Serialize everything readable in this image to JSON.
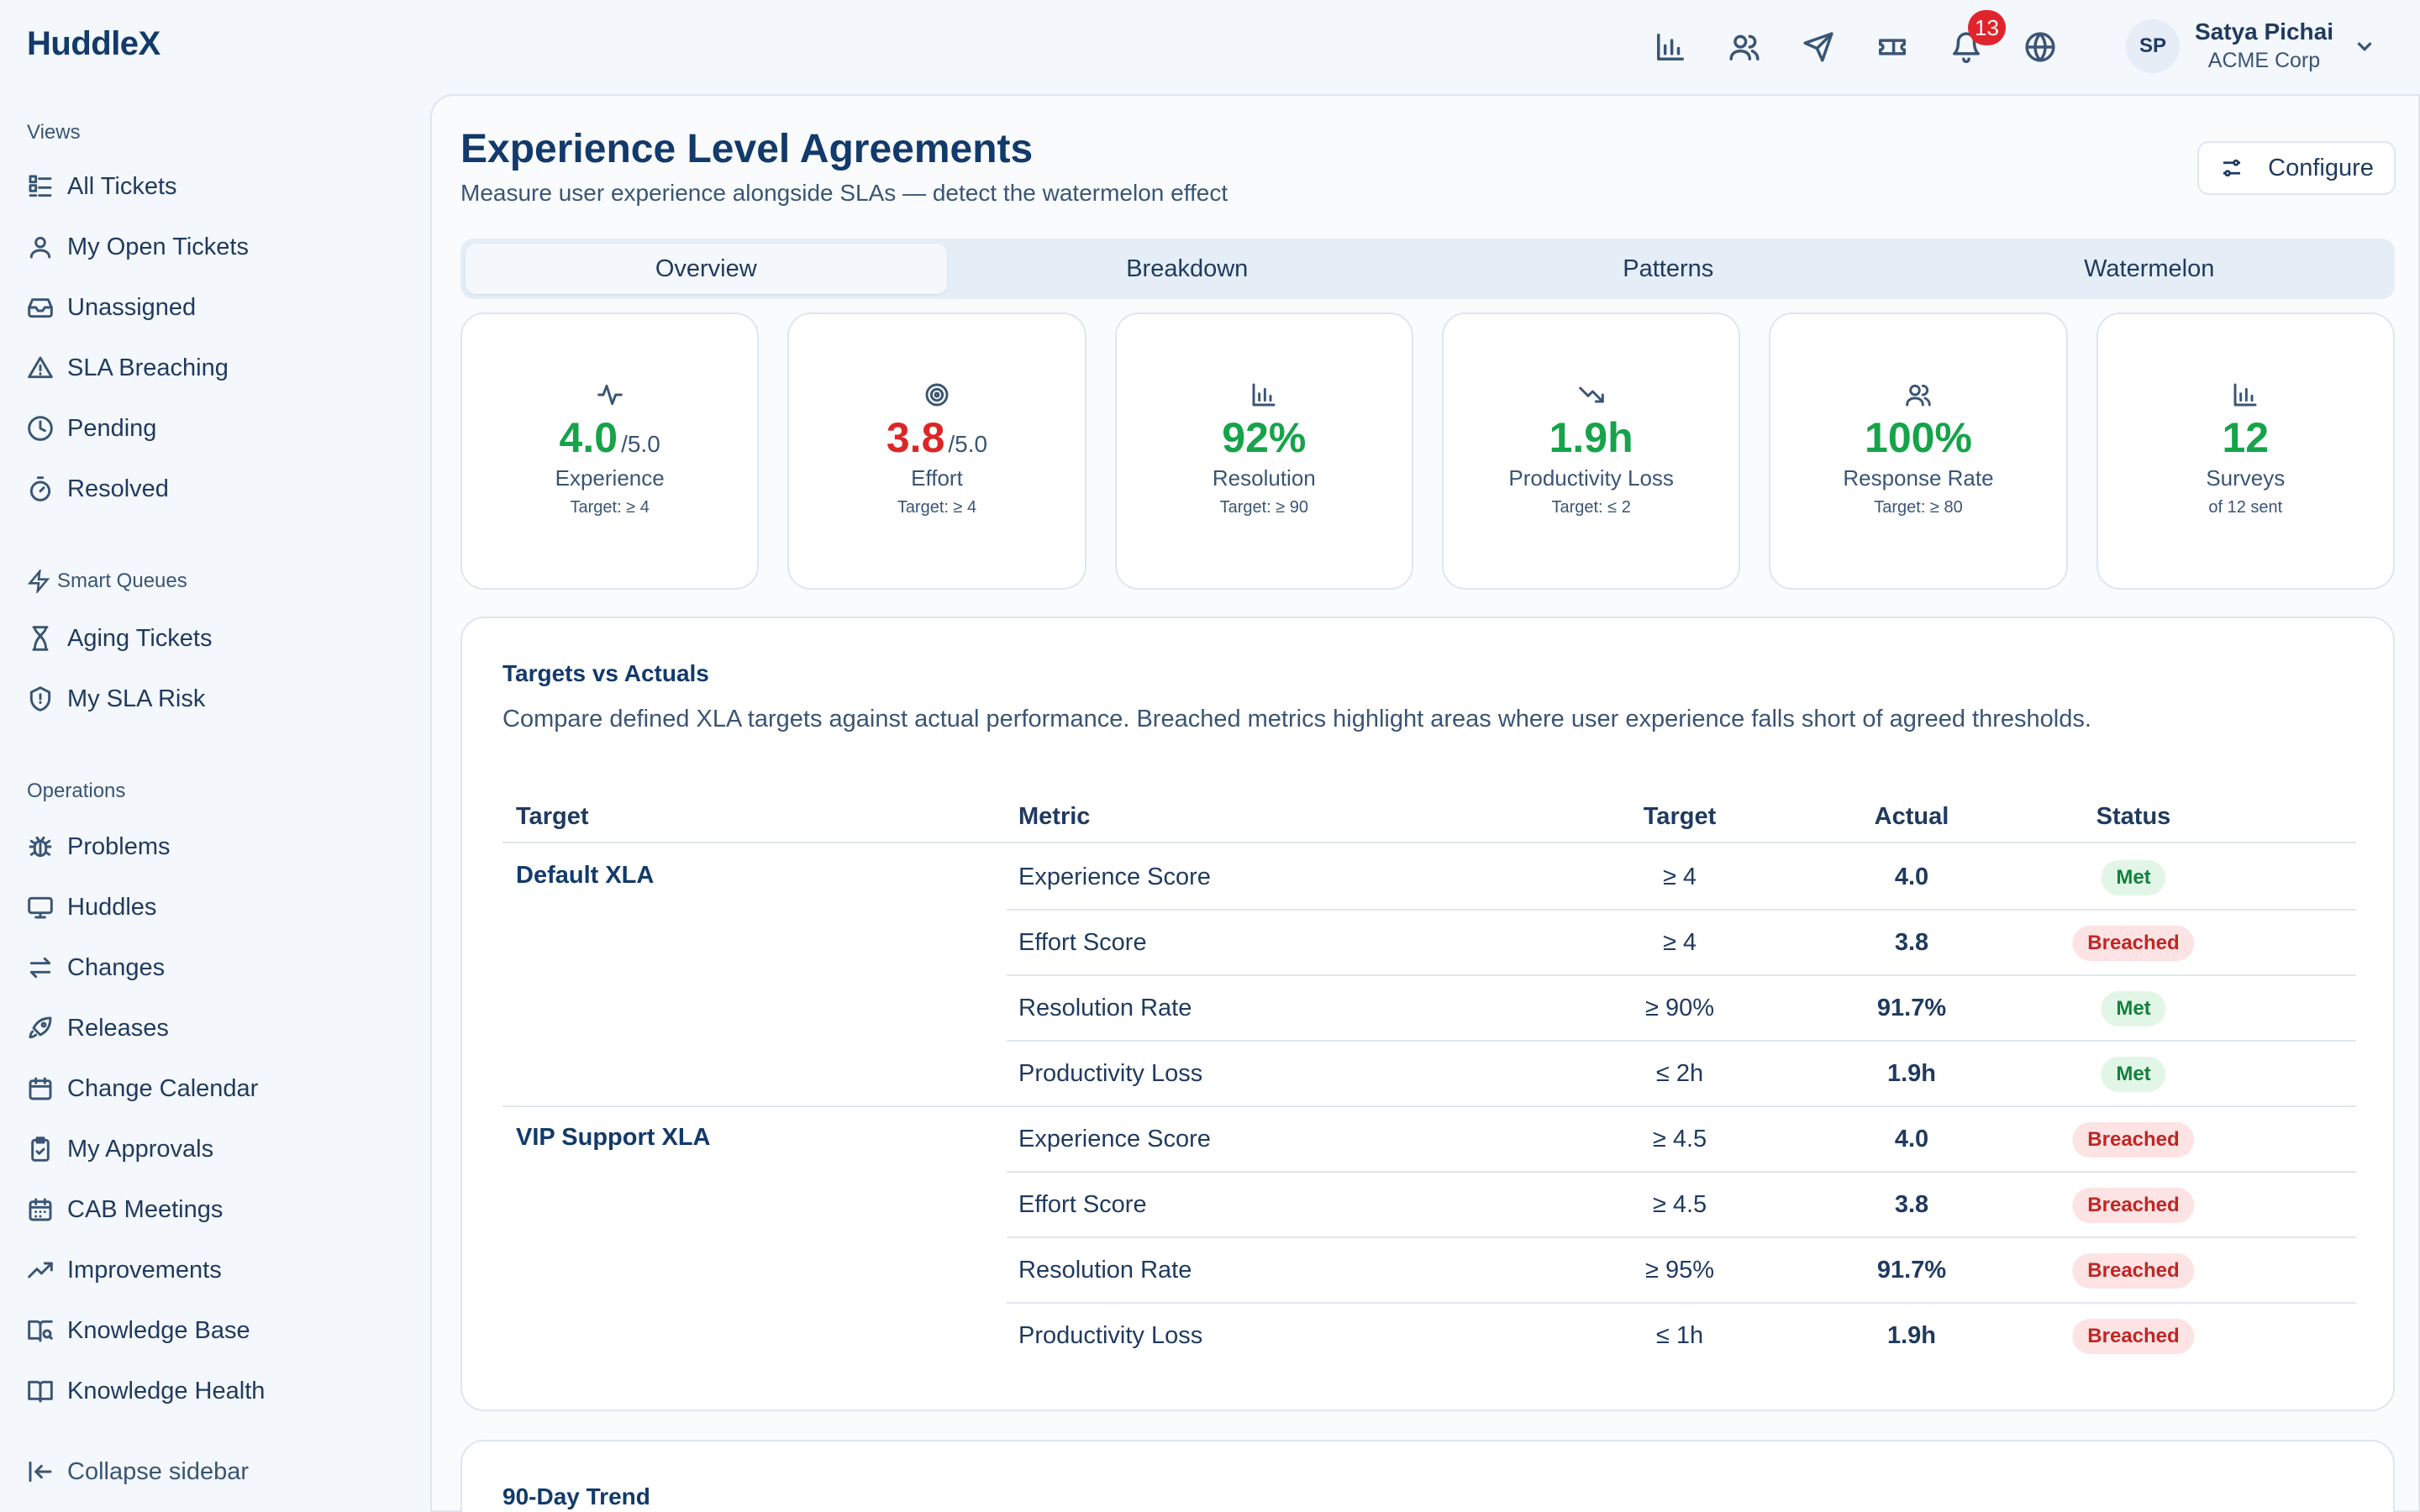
{
  "app": {
    "logo": "HuddleX"
  },
  "topbar": {
    "icons": [
      "bar-chart-icon",
      "users-icon",
      "send-icon",
      "ticket-icon",
      "bell-icon",
      "globe-icon"
    ],
    "notifications_count": "13",
    "user": {
      "initials": "SP",
      "name": "Satya Pichai",
      "org": "ACME Corp"
    }
  },
  "sidebar": {
    "views_title": "Views",
    "views": [
      {
        "label": "All Tickets",
        "icon": "list-icon"
      },
      {
        "label": "My Open Tickets",
        "icon": "user-icon"
      },
      {
        "label": "Unassigned",
        "icon": "inbox-icon"
      },
      {
        "label": "SLA Breaching",
        "icon": "alert-triangle-icon"
      },
      {
        "label": "Pending",
        "icon": "clock-icon"
      },
      {
        "label": "Resolved",
        "icon": "timer-icon"
      }
    ],
    "smart_title": "Smart Queues",
    "smart": [
      {
        "label": "Aging Tickets",
        "icon": "hourglass-icon"
      },
      {
        "label": "My SLA Risk",
        "icon": "shield-icon"
      }
    ],
    "ops_title": "Operations",
    "ops": [
      {
        "label": "Problems",
        "icon": "bug-icon"
      },
      {
        "label": "Huddles",
        "icon": "monitor-icon"
      },
      {
        "label": "Changes",
        "icon": "arrows-icon"
      },
      {
        "label": "Releases",
        "icon": "rocket-icon"
      },
      {
        "label": "Change Calendar",
        "icon": "calendar-icon"
      },
      {
        "label": "My Approvals",
        "icon": "clipboard-check-icon"
      },
      {
        "label": "CAB Meetings",
        "icon": "calendar-grid-icon"
      },
      {
        "label": "Improvements",
        "icon": "trending-up-icon"
      },
      {
        "label": "Knowledge Base",
        "icon": "book-search-icon"
      },
      {
        "label": "Knowledge Health",
        "icon": "book-open-icon"
      }
    ],
    "collapse_label": "Collapse sidebar"
  },
  "page": {
    "title": "Experience Level Agreements",
    "subtitle": "Measure user experience alongside SLAs — detect the watermelon effect",
    "configure_label": "Configure"
  },
  "tabs": [
    {
      "label": "Overview",
      "active": true
    },
    {
      "label": "Breakdown",
      "active": false
    },
    {
      "label": "Patterns",
      "active": false
    },
    {
      "label": "Watermelon",
      "active": false
    }
  ],
  "cards": [
    {
      "icon": "activity-icon",
      "value": "4.0",
      "unit": "/5.0",
      "label": "Experience",
      "target": "Target: ≥ 4",
      "color": "#16a34a"
    },
    {
      "icon": "target-icon",
      "value": "3.8",
      "unit": "/5.0",
      "label": "Effort",
      "target": "Target: ≥ 4",
      "color": "#dc2626"
    },
    {
      "icon": "bar-chart-icon",
      "value": "92%",
      "unit": "",
      "label": "Resolution",
      "target": "Target: ≥ 90",
      "color": "#16a34a"
    },
    {
      "icon": "trending-down-icon",
      "value": "1.9h",
      "unit": "",
      "label": "Productivity Loss",
      "target": "Target: ≤ 2",
      "color": "#16a34a"
    },
    {
      "icon": "users-icon",
      "value": "100%",
      "unit": "",
      "label": "Response Rate",
      "target": "Target: ≥ 80",
      "color": "#16a34a"
    },
    {
      "icon": "bar-chart-icon",
      "value": "12",
      "unit": "",
      "label": "Surveys",
      "target": "of 12 sent",
      "color": "#16a34a"
    }
  ],
  "targets_panel": {
    "title": "Targets vs Actuals",
    "description": "Compare defined XLA targets against actual performance. Breached metrics highlight areas where user experience falls short of agreed thresholds.",
    "headers": {
      "target": "Target",
      "metric": "Metric",
      "target_value": "Target",
      "actual": "Actual",
      "status": "Status"
    },
    "groups": [
      {
        "name": "Default XLA",
        "rows": [
          {
            "metric": "Experience Score",
            "target": "≥ 4",
            "actual": "4.0",
            "status": "Met"
          },
          {
            "metric": "Effort Score",
            "target": "≥ 4",
            "actual": "3.8",
            "status": "Breached"
          },
          {
            "metric": "Resolution Rate",
            "target": "≥ 90%",
            "actual": "91.7%",
            "status": "Met"
          },
          {
            "metric": "Productivity Loss",
            "target": "≤ 2h",
            "actual": "1.9h",
            "status": "Met"
          }
        ]
      },
      {
        "name": "VIP Support XLA",
        "rows": [
          {
            "metric": "Experience Score",
            "target": "≥ 4.5",
            "actual": "4.0",
            "status": "Breached"
          },
          {
            "metric": "Effort Score",
            "target": "≥ 4.5",
            "actual": "3.8",
            "status": "Breached"
          },
          {
            "metric": "Resolution Rate",
            "target": "≥ 95%",
            "actual": "91.7%",
            "status": "Breached"
          },
          {
            "metric": "Productivity Loss",
            "target": "≤ 1h",
            "actual": "1.9h",
            "status": "Breached"
          }
        ]
      }
    ]
  },
  "trend_panel": {
    "title": "90-Day Trend"
  }
}
